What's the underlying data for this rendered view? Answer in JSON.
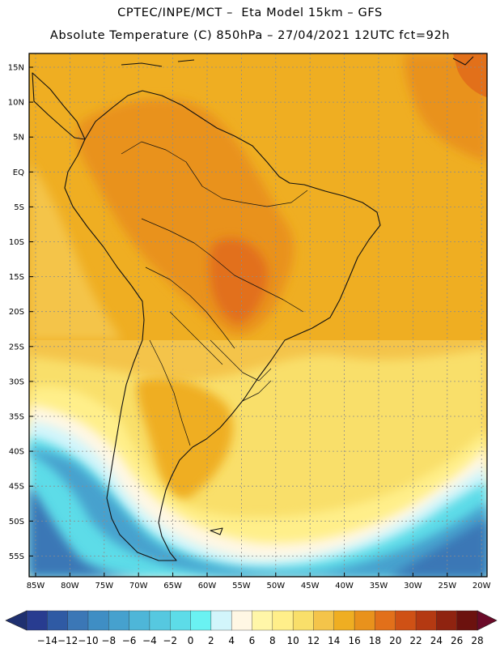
{
  "header": {
    "line1": "CPTEC/INPE/MCT –  Eta Model 15km – GFS",
    "line2": "Absolute Temperature (C) 850hPa – 27/04/2021 12UTC fct=92h"
  },
  "axes": {
    "lat_labels": [
      "15N",
      "10N",
      "5N",
      "EQ",
      "5S",
      "10S",
      "15S",
      "20S",
      "25S",
      "30S",
      "35S",
      "40S",
      "45S",
      "50S",
      "55S"
    ],
    "lon_labels": [
      "85W",
      "80W",
      "75W",
      "70W",
      "65W",
      "60W",
      "55W",
      "50W",
      "45W",
      "40W",
      "35W",
      "30W",
      "25W",
      "20W"
    ]
  },
  "colorbar": {
    "labels": [
      "-14",
      "-12",
      "-10",
      "-8",
      "-6",
      "-4",
      "-2",
      "0",
      "2",
      "4",
      "6",
      "8",
      "10",
      "12",
      "14",
      "16",
      "18",
      "20",
      "22",
      "24",
      "26",
      "28"
    ],
    "colors": [
      "#283c90",
      "#2f5aa4",
      "#3b77b6",
      "#3f8ec4",
      "#46a1ce",
      "#4eb6d8",
      "#56c8e0",
      "#5ddce8",
      "#6af2f2",
      "#d2f5fb",
      "#fff7e4",
      "#fff6a8",
      "#ffef8a",
      "#f9df6a",
      "#f4c44a",
      "#efae22",
      "#e9921c",
      "#e2701a",
      "#cf5115",
      "#b43912",
      "#8f2310",
      "#6c120e"
    ],
    "low_arrow": "#1f3070",
    "high_arrow": "#6a0a28"
  }
}
